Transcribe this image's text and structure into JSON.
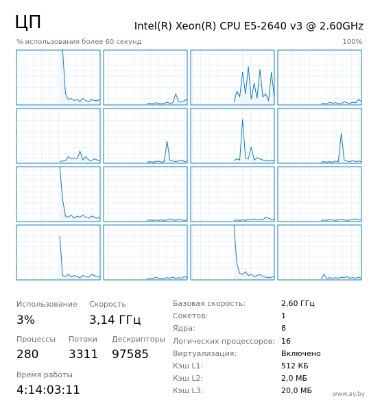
{
  "header": {
    "title": "ЦП",
    "processor": "Intel(R) Xeon(R) CPU E5-2640 v3 @ 2.60GHz"
  },
  "graph_caption": {
    "left": "% использования более 60 секунд",
    "right": "100%"
  },
  "chart_data": [
    {
      "type": "line",
      "color": "#117dbb",
      "ylim": [
        0,
        100
      ],
      "values": [
        null,
        null,
        null,
        null,
        null,
        null,
        null,
        null,
        null,
        null,
        null,
        null,
        null,
        null,
        null,
        100,
        100,
        20,
        10,
        12,
        8,
        10,
        6,
        12,
        8,
        6,
        10,
        8,
        8,
        10
      ]
    },
    {
      "type": "line",
      "color": "#117dbb",
      "ylim": [
        0,
        100
      ],
      "values": [
        null,
        null,
        null,
        null,
        null,
        null,
        null,
        null,
        null,
        null,
        null,
        null,
        null,
        null,
        null,
        2,
        3,
        2,
        4,
        3,
        2,
        3,
        5,
        3,
        4,
        20,
        6,
        5,
        8,
        10
      ]
    },
    {
      "type": "line",
      "color": "#117dbb",
      "ylim": [
        0,
        100
      ],
      "values": [
        null,
        null,
        null,
        null,
        null,
        null,
        null,
        null,
        null,
        null,
        null,
        null,
        null,
        null,
        null,
        5,
        25,
        15,
        60,
        20,
        70,
        10,
        40,
        12,
        65,
        15,
        20,
        8,
        60,
        12
      ]
    },
    {
      "type": "line",
      "color": "#117dbb",
      "ylim": [
        0,
        100
      ],
      "values": [
        null,
        null,
        null,
        null,
        null,
        null,
        null,
        null,
        null,
        null,
        null,
        null,
        null,
        null,
        null,
        2,
        3,
        2,
        5,
        3,
        4,
        3,
        2,
        6,
        4,
        3,
        5,
        4,
        10,
        6
      ]
    },
    {
      "type": "line",
      "color": "#117dbb",
      "ylim": [
        0,
        100
      ],
      "values": [
        null,
        null,
        null,
        null,
        null,
        null,
        null,
        null,
        null,
        null,
        null,
        null,
        null,
        null,
        null,
        3,
        4,
        5,
        12,
        8,
        10,
        8,
        22,
        6,
        12,
        6,
        5,
        8,
        6,
        5
      ]
    },
    {
      "type": "line",
      "color": "#117dbb",
      "ylim": [
        0,
        100
      ],
      "values": [
        null,
        null,
        null,
        null,
        null,
        null,
        null,
        null,
        null,
        null,
        null,
        null,
        null,
        null,
        null,
        2,
        3,
        2,
        3,
        4,
        2,
        3,
        40,
        5,
        4,
        3,
        4,
        6,
        3,
        4
      ]
    },
    {
      "type": "line",
      "color": "#117dbb",
      "ylim": [
        0,
        100
      ],
      "values": [
        null,
        null,
        null,
        null,
        null,
        null,
        null,
        null,
        null,
        null,
        null,
        null,
        null,
        null,
        null,
        5,
        8,
        6,
        80,
        10,
        8,
        30,
        6,
        10,
        8,
        6,
        5,
        4,
        6,
        5
      ]
    },
    {
      "type": "line",
      "color": "#117dbb",
      "ylim": [
        0,
        100
      ],
      "values": [
        null,
        null,
        null,
        null,
        null,
        null,
        null,
        null,
        null,
        null,
        null,
        null,
        null,
        null,
        null,
        2,
        3,
        2,
        3,
        2,
        4,
        3,
        55,
        6,
        4,
        3,
        5,
        3,
        4,
        3
      ]
    },
    {
      "type": "line",
      "color": "#117dbb",
      "ylim": [
        0,
        100
      ],
      "values": [
        null,
        null,
        null,
        null,
        null,
        null,
        null,
        null,
        null,
        null,
        null,
        null,
        null,
        null,
        null,
        100,
        40,
        10,
        8,
        12,
        6,
        10,
        8,
        12,
        8,
        6,
        10,
        8,
        6,
        8
      ]
    },
    {
      "type": "line",
      "color": "#117dbb",
      "ylim": [
        0,
        100
      ],
      "values": [
        null,
        null,
        null,
        null,
        null,
        null,
        null,
        null,
        null,
        null,
        null,
        null,
        null,
        null,
        null,
        2,
        3,
        2,
        3,
        2,
        3,
        2,
        3,
        5,
        3,
        2,
        4,
        3,
        2,
        3
      ]
    },
    {
      "type": "line",
      "color": "#117dbb",
      "ylim": [
        0,
        100
      ],
      "values": [
        null,
        null,
        null,
        null,
        null,
        null,
        null,
        null,
        null,
        null,
        null,
        null,
        null,
        null,
        null,
        2,
        3,
        2,
        3,
        2,
        4,
        3,
        5,
        3,
        4,
        3,
        8,
        6,
        4,
        3
      ]
    },
    {
      "type": "line",
      "color": "#117dbb",
      "ylim": [
        0,
        100
      ],
      "values": [
        null,
        null,
        null,
        null,
        null,
        null,
        null,
        null,
        null,
        null,
        null,
        null,
        null,
        null,
        null,
        2,
        3,
        2,
        4,
        3,
        2,
        3,
        4,
        3,
        2,
        3,
        4,
        5,
        3,
        4
      ]
    },
    {
      "type": "line",
      "color": "#117dbb",
      "ylim": [
        0,
        100
      ],
      "values": [
        null,
        null,
        null,
        null,
        null,
        null,
        null,
        null,
        null,
        null,
        null,
        null,
        null,
        null,
        null,
        80,
        8,
        6,
        10,
        5,
        8,
        6,
        4,
        8,
        6,
        5,
        10,
        8,
        6,
        5
      ]
    },
    {
      "type": "line",
      "color": "#117dbb",
      "ylim": [
        0,
        100
      ],
      "values": [
        null,
        null,
        null,
        null,
        null,
        null,
        null,
        null,
        null,
        null,
        null,
        null,
        null,
        null,
        null,
        2,
        3,
        2,
        5,
        3,
        2,
        3,
        4,
        3,
        5,
        3,
        4,
        3,
        6,
        4
      ]
    },
    {
      "type": "line",
      "color": "#117dbb",
      "ylim": [
        0,
        100
      ],
      "values": [
        null,
        null,
        null,
        null,
        null,
        null,
        null,
        null,
        null,
        null,
        null,
        null,
        null,
        null,
        null,
        100,
        30,
        12,
        10,
        15,
        8,
        10,
        6,
        8,
        10,
        6,
        5,
        4,
        5,
        6
      ]
    },
    {
      "type": "line",
      "color": "#117dbb",
      "ylim": [
        0,
        100
      ],
      "values": [
        null,
        null,
        null,
        null,
        null,
        null,
        null,
        null,
        null,
        null,
        null,
        null,
        null,
        null,
        null,
        2,
        10,
        3,
        4,
        3,
        4,
        3,
        5,
        4,
        6,
        3,
        4,
        3,
        5,
        3
      ]
    }
  ],
  "stats": {
    "utilization": {
      "label": "Использование",
      "value": "3%"
    },
    "speed": {
      "label": "Скорость",
      "value": "3,14 ГГц"
    },
    "processes": {
      "label": "Процессы",
      "value": "280"
    },
    "threads": {
      "label": "Потоки",
      "value": "3311"
    },
    "handles": {
      "label": "Дескрипторы",
      "value": "97585"
    },
    "uptime": {
      "label": "Время работы",
      "value": "4:14:03:11"
    }
  },
  "details": [
    [
      "Базовая скорость:",
      "2,60 ГГц"
    ],
    [
      "Сокетов:",
      "1"
    ],
    [
      "Ядра:",
      "8"
    ],
    [
      "Логических процессоров:",
      "16"
    ],
    [
      "Виртуализация:",
      "Включено"
    ],
    [
      "Кэш L1:",
      "512 КБ"
    ],
    [
      "Кэш L2:",
      "2,0 МБ"
    ],
    [
      "Кэш L3:",
      "20,0 МБ"
    ]
  ],
  "watermark": "www.ay.by"
}
